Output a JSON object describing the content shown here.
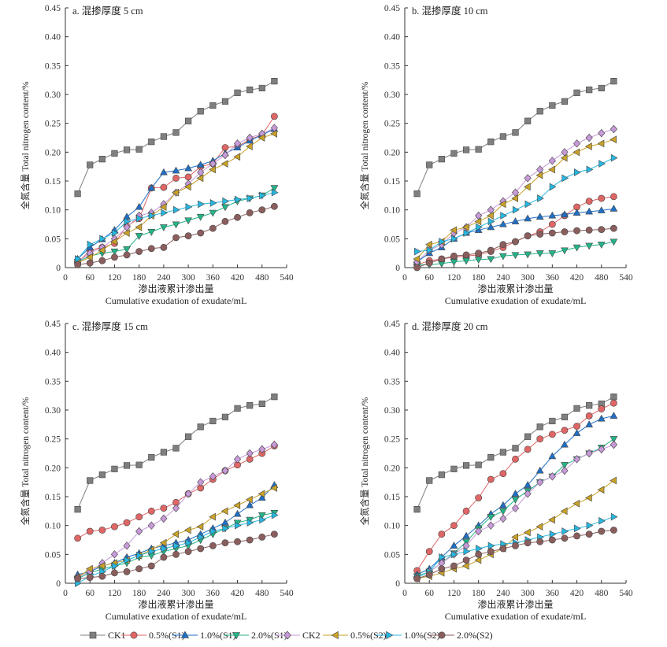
{
  "chart_data": [
    {
      "type": "line",
      "title": "a. 混掺厚度 5 cm",
      "xlabel_cn": "渗出液累计渗出量",
      "xlabel": "Cumulative exudation of exudate/mL",
      "ylabel": "全氮含量 Total nitrogen content/%",
      "xlim": [
        0,
        540
      ],
      "ylim": [
        0,
        0.45
      ],
      "xticks": [
        "0",
        "60",
        "120",
        "180",
        "240",
        "300",
        "360",
        "420",
        "480",
        "540"
      ],
      "yticks": [
        "0",
        "0.05",
        "0.10",
        "0.15",
        "0.20",
        "0.25",
        "0.30",
        "0.35",
        "0.40",
        "0.45"
      ],
      "x": [
        30,
        60,
        90,
        120,
        150,
        180,
        210,
        240,
        270,
        300,
        330,
        360,
        390,
        420,
        450,
        480,
        510
      ],
      "series": [
        {
          "name": "CK1",
          "values": [
            0.128,
            0.178,
            0.188,
            0.198,
            0.204,
            0.205,
            0.218,
            0.227,
            0.234,
            0.254,
            0.271,
            0.281,
            0.288,
            0.303,
            0.308,
            0.311,
            0.323
          ]
        },
        {
          "name": "0.5%(S1)",
          "values": [
            0.008,
            0.03,
            0.035,
            0.042,
            0.072,
            0.085,
            0.138,
            0.139,
            0.155,
            0.157,
            0.175,
            0.18,
            0.208,
            0.21,
            0.222,
            0.23,
            0.262
          ]
        },
        {
          "name": "1.0%(S1)",
          "values": [
            0.015,
            0.035,
            0.049,
            0.065,
            0.088,
            0.105,
            0.138,
            0.165,
            0.168,
            0.172,
            0.178,
            0.185,
            0.198,
            0.208,
            0.22,
            0.23,
            0.24
          ]
        },
        {
          "name": "2.0%(S1)",
          "values": [
            0.01,
            0.02,
            0.025,
            0.028,
            0.032,
            0.055,
            0.062,
            0.07,
            0.075,
            0.082,
            0.088,
            0.095,
            0.105,
            0.115,
            0.12,
            0.125,
            0.138
          ]
        },
        {
          "name": "CK2",
          "values": [
            0.01,
            0.025,
            0.035,
            0.05,
            0.07,
            0.09,
            0.095,
            0.11,
            0.13,
            0.145,
            0.165,
            0.18,
            0.195,
            0.215,
            0.225,
            0.232,
            0.242
          ]
        },
        {
          "name": "0.5%(S2)",
          "values": [
            0.008,
            0.018,
            0.03,
            0.045,
            0.06,
            0.07,
            0.09,
            0.105,
            0.13,
            0.14,
            0.155,
            0.17,
            0.18,
            0.192,
            0.21,
            0.225,
            0.232
          ]
        },
        {
          "name": "1.0%(S2)",
          "values": [
            0.015,
            0.04,
            0.05,
            0.06,
            0.08,
            0.085,
            0.09,
            0.095,
            0.1,
            0.105,
            0.11,
            0.112,
            0.115,
            0.118,
            0.12,
            0.125,
            0.13
          ]
        },
        {
          "name": "2.0%(S2)",
          "values": [
            0.005,
            0.008,
            0.012,
            0.018,
            0.022,
            0.028,
            0.033,
            0.035,
            0.052,
            0.055,
            0.06,
            0.068,
            0.08,
            0.087,
            0.095,
            0.1,
            0.106
          ]
        }
      ]
    },
    {
      "type": "line",
      "title": "b. 混掺厚度 10 cm",
      "xlabel_cn": "渗出液累计渗出量",
      "xlabel": "Cumulative exudation of exudate/mL",
      "ylabel": "全氮含量 Total nitrogen content/%",
      "xlim": [
        0,
        540
      ],
      "ylim": [
        0,
        0.45
      ],
      "xticks": [
        "0",
        "60",
        "120",
        "180",
        "240",
        "300",
        "360",
        "420",
        "480",
        "540"
      ],
      "yticks": [
        "0",
        "0.05",
        "0.10",
        "0.15",
        "0.20",
        "0.25",
        "0.30",
        "0.35",
        "0.40",
        "0.45"
      ],
      "x": [
        30,
        60,
        90,
        120,
        150,
        180,
        210,
        240,
        270,
        300,
        330,
        360,
        390,
        420,
        450,
        480,
        510
      ],
      "series": [
        {
          "name": "CK1",
          "values": [
            0.128,
            0.178,
            0.188,
            0.198,
            0.204,
            0.205,
            0.218,
            0.227,
            0.234,
            0.254,
            0.271,
            0.281,
            0.288,
            0.303,
            0.308,
            0.311,
            0.323
          ]
        },
        {
          "name": "0.5%(S1)",
          "values": [
            0.005,
            0.012,
            0.015,
            0.018,
            0.02,
            0.022,
            0.028,
            0.035,
            0.045,
            0.055,
            0.062,
            0.075,
            0.09,
            0.105,
            0.115,
            0.12,
            0.123
          ]
        },
        {
          "name": "1.0%(S1)",
          "values": [
            0.01,
            0.025,
            0.035,
            0.05,
            0.06,
            0.065,
            0.07,
            0.075,
            0.08,
            0.085,
            0.088,
            0.09,
            0.092,
            0.095,
            0.097,
            0.099,
            0.102
          ]
        },
        {
          "name": "2.0%(S1)",
          "values": [
            0.005,
            0.005,
            0.007,
            0.01,
            0.012,
            0.014,
            0.015,
            0.02,
            0.022,
            0.023,
            0.025,
            0.025,
            0.03,
            0.035,
            0.038,
            0.04,
            0.045
          ]
        },
        {
          "name": "CK2",
          "values": [
            0.01,
            0.03,
            0.04,
            0.06,
            0.07,
            0.09,
            0.1,
            0.115,
            0.13,
            0.155,
            0.17,
            0.185,
            0.2,
            0.215,
            0.225,
            0.233,
            0.24
          ]
        },
        {
          "name": "0.5%(S2)",
          "values": [
            0.015,
            0.04,
            0.045,
            0.065,
            0.07,
            0.08,
            0.09,
            0.11,
            0.12,
            0.14,
            0.16,
            0.17,
            0.19,
            0.2,
            0.21,
            0.215,
            0.222
          ]
        },
        {
          "name": "1.0%(S2)",
          "values": [
            0.028,
            0.03,
            0.045,
            0.05,
            0.06,
            0.07,
            0.08,
            0.09,
            0.1,
            0.11,
            0.12,
            0.14,
            0.155,
            0.165,
            0.17,
            0.18,
            0.19
          ]
        },
        {
          "name": "2.0%(S2)",
          "values": [
            0.0,
            0.008,
            0.015,
            0.02,
            0.022,
            0.025,
            0.03,
            0.04,
            0.045,
            0.055,
            0.058,
            0.06,
            0.062,
            0.064,
            0.065,
            0.066,
            0.068
          ]
        }
      ]
    },
    {
      "type": "line",
      "title": "c. 混掺厚度 15 cm",
      "xlabel_cn": "渗出液累计渗出量",
      "xlabel": "Cumulative exudation of exudate/mL",
      "ylabel": "全氮含量 Total nitrogen content/%",
      "xlim": [
        0,
        540
      ],
      "ylim": [
        0,
        0.45
      ],
      "xticks": [
        "0",
        "60",
        "120",
        "180",
        "240",
        "300",
        "360",
        "420",
        "480",
        "540"
      ],
      "yticks": [
        "0",
        "0.05",
        "0.10",
        "0.15",
        "0.20",
        "0.25",
        "0.30",
        "0.35",
        "0.40",
        "0.45"
      ],
      "x": [
        30,
        60,
        90,
        120,
        150,
        180,
        210,
        240,
        270,
        300,
        330,
        360,
        390,
        420,
        450,
        480,
        510
      ],
      "series": [
        {
          "name": "CK1",
          "values": [
            0.128,
            0.178,
            0.188,
            0.198,
            0.204,
            0.205,
            0.218,
            0.227,
            0.234,
            0.254,
            0.271,
            0.281,
            0.288,
            0.303,
            0.308,
            0.311,
            0.323
          ]
        },
        {
          "name": "0.5%(S1)",
          "values": [
            0.078,
            0.09,
            0.092,
            0.098,
            0.105,
            0.115,
            0.125,
            0.13,
            0.14,
            0.155,
            0.165,
            0.18,
            0.195,
            0.205,
            0.215,
            0.225,
            0.238
          ]
        },
        {
          "name": "1.0%(S1)",
          "values": [
            0.015,
            0.02,
            0.03,
            0.035,
            0.045,
            0.052,
            0.06,
            0.065,
            0.07,
            0.075,
            0.085,
            0.095,
            0.105,
            0.12,
            0.135,
            0.148,
            0.17
          ]
        },
        {
          "name": "2.0%(S1)",
          "values": [
            0.008,
            0.018,
            0.025,
            0.03,
            0.035,
            0.045,
            0.048,
            0.055,
            0.06,
            0.065,
            0.075,
            0.085,
            0.095,
            0.105,
            0.11,
            0.118,
            0.122
          ]
        },
        {
          "name": "CK2",
          "values": [
            0.01,
            0.02,
            0.035,
            0.05,
            0.065,
            0.09,
            0.1,
            0.112,
            0.13,
            0.155,
            0.175,
            0.185,
            0.195,
            0.215,
            0.225,
            0.232,
            0.24
          ]
        },
        {
          "name": "0.5%(S2)",
          "values": [
            0.01,
            0.025,
            0.03,
            0.035,
            0.04,
            0.048,
            0.058,
            0.07,
            0.085,
            0.092,
            0.098,
            0.115,
            0.125,
            0.135,
            0.145,
            0.155,
            0.165
          ]
        },
        {
          "name": "1.0%(S2)",
          "values": [
            0.0,
            0.012,
            0.02,
            0.03,
            0.04,
            0.048,
            0.055,
            0.06,
            0.065,
            0.07,
            0.08,
            0.09,
            0.095,
            0.1,
            0.105,
            0.11,
            0.118
          ]
        },
        {
          "name": "2.0%(S2)",
          "values": [
            0.008,
            0.01,
            0.012,
            0.018,
            0.02,
            0.025,
            0.03,
            0.045,
            0.05,
            0.055,
            0.06,
            0.065,
            0.07,
            0.072,
            0.075,
            0.08,
            0.085
          ]
        }
      ]
    },
    {
      "type": "line",
      "title": "d. 混掺厚度 20 cm",
      "xlabel_cn": "渗出液累计渗出量",
      "xlabel": "Cumulative exudation of exudate/mL",
      "ylabel": "全氮含量 Total nitrogen content/%",
      "xlim": [
        0,
        540
      ],
      "ylim": [
        0,
        0.45
      ],
      "xticks": [
        "0",
        "60",
        "120",
        "180",
        "240",
        "300",
        "360",
        "420",
        "480",
        "540"
      ],
      "yticks": [
        "0",
        "0.05",
        "0.10",
        "0.15",
        "0.20",
        "0.25",
        "0.30",
        "0.35",
        "0.40",
        "0.45"
      ],
      "x": [
        30,
        60,
        90,
        120,
        150,
        180,
        210,
        240,
        270,
        300,
        330,
        360,
        390,
        420,
        450,
        480,
        510
      ],
      "series": [
        {
          "name": "CK1",
          "values": [
            0.128,
            0.178,
            0.188,
            0.198,
            0.204,
            0.205,
            0.218,
            0.227,
            0.234,
            0.254,
            0.271,
            0.281,
            0.288,
            0.303,
            0.308,
            0.311,
            0.323
          ]
        },
        {
          "name": "0.5%(S1)",
          "values": [
            0.022,
            0.055,
            0.085,
            0.1,
            0.125,
            0.148,
            0.18,
            0.19,
            0.215,
            0.232,
            0.25,
            0.258,
            0.265,
            0.272,
            0.29,
            0.302,
            0.312
          ]
        },
        {
          "name": "1.0%(S1)",
          "values": [
            0.015,
            0.025,
            0.045,
            0.065,
            0.082,
            0.1,
            0.12,
            0.135,
            0.155,
            0.17,
            0.195,
            0.22,
            0.24,
            0.26,
            0.275,
            0.285,
            0.29
          ]
        },
        {
          "name": "2.0%(S1)",
          "values": [
            0.012,
            0.02,
            0.035,
            0.052,
            0.072,
            0.095,
            0.115,
            0.125,
            0.145,
            0.16,
            0.175,
            0.185,
            0.205,
            0.215,
            0.225,
            0.235,
            0.25
          ]
        },
        {
          "name": "CK2",
          "values": [
            0.01,
            0.02,
            0.035,
            0.05,
            0.065,
            0.09,
            0.1,
            0.112,
            0.13,
            0.155,
            0.175,
            0.185,
            0.195,
            0.215,
            0.225,
            0.232,
            0.24
          ]
        },
        {
          "name": "0.5%(S2)",
          "values": [
            0.008,
            0.012,
            0.018,
            0.025,
            0.03,
            0.04,
            0.05,
            0.06,
            0.08,
            0.088,
            0.098,
            0.11,
            0.125,
            0.138,
            0.148,
            0.162,
            0.178
          ]
        },
        {
          "name": "1.0%(S2)",
          "values": [
            0.01,
            0.02,
            0.045,
            0.05,
            0.055,
            0.06,
            0.065,
            0.068,
            0.07,
            0.075,
            0.08,
            0.085,
            0.09,
            0.095,
            0.1,
            0.108,
            0.115
          ]
        },
        {
          "name": "2.0%(S2)",
          "values": [
            0.008,
            0.015,
            0.025,
            0.03,
            0.04,
            0.05,
            0.055,
            0.06,
            0.065,
            0.07,
            0.072,
            0.075,
            0.078,
            0.082,
            0.085,
            0.09,
            0.092
          ]
        }
      ]
    }
  ],
  "series_styles": [
    {
      "name": "CK1",
      "marker": "square",
      "color": "#7f7f7f"
    },
    {
      "name": "0.5%(S1)",
      "marker": "circle",
      "color": "#e06666"
    },
    {
      "name": "1.0%(S1)",
      "marker": "triangle-up",
      "color": "#1f6fc6"
    },
    {
      "name": "2.0%(S1)",
      "marker": "triangle-down",
      "color": "#23b58a"
    },
    {
      "name": "CK2",
      "marker": "diamond",
      "color": "#c79ad8"
    },
    {
      "name": "0.5%(S2)",
      "marker": "triangle-left",
      "color": "#c9a227"
    },
    {
      "name": "1.0%(S2)",
      "marker": "triangle-right",
      "color": "#27b7e0"
    },
    {
      "name": "2.0%(S2)",
      "marker": "circle",
      "color": "#8b5e5e"
    }
  ],
  "legend": {
    "placement": "bottom",
    "items": [
      "CK1",
      "0.5%(S1)",
      "1.0%(S1)",
      "2.0%(S1)",
      "CK2",
      "0.5%(S2)",
      "1.0%(S2)",
      "2.0%(S2)"
    ]
  }
}
